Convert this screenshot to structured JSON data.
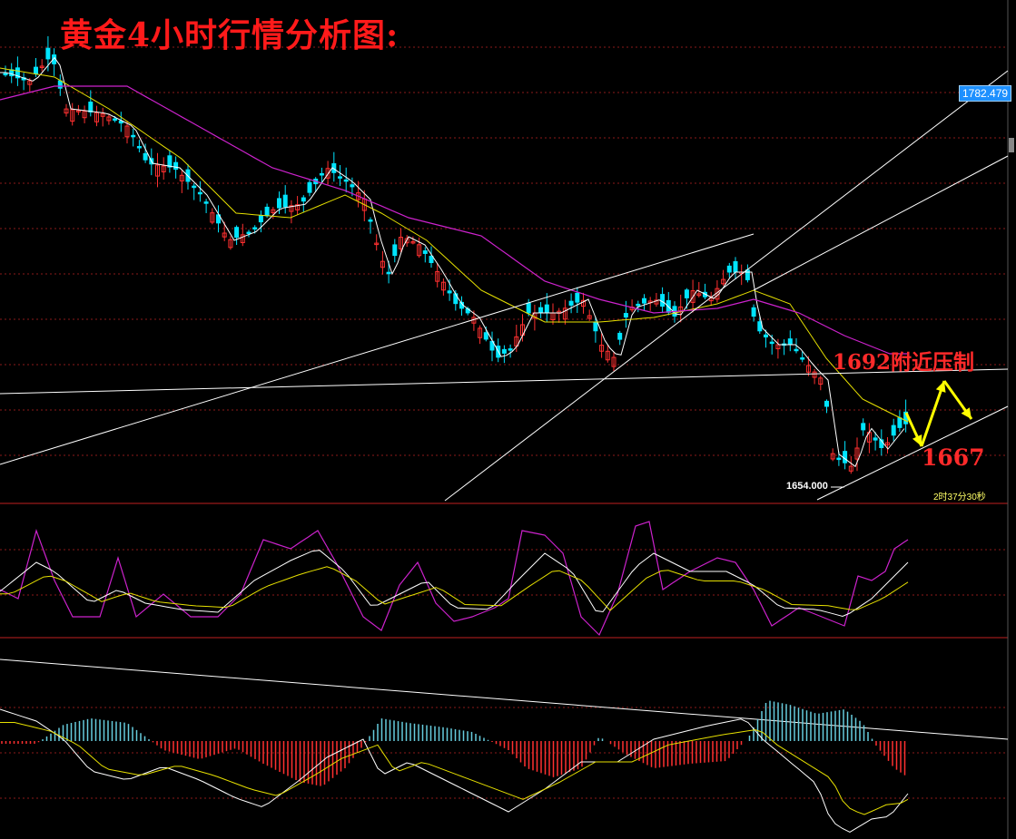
{
  "title": "黄金4小时行情分析图:",
  "annotations": {
    "resistance": "1692附近压制",
    "support": "1667",
    "price_tag": "1782.479",
    "low_tag": "1654.000",
    "countdown": "2时37分30秒"
  },
  "colors": {
    "background": "#000000",
    "bull": "#ff3030",
    "bear": "#00e5ff",
    "ma_fast": "#ffffff",
    "ma_mid": "#e6e000",
    "ma_slow": "#cc22cc",
    "grid": "#8b1a1a",
    "annotation": "#ff2a2a",
    "arrow": "#ffff00"
  },
  "chart_data": {
    "type": "candlestick",
    "main_panel": {
      "ylim": [
        1654,
        1782.479
      ],
      "last_price": 1782.479,
      "lowest_marked": 1654.0,
      "resistance": 1692,
      "support": 1667
    },
    "candles_close_profile": [
      0.84,
      0.86,
      0.87,
      0.88,
      0.9,
      0.92,
      0.93,
      0.91,
      0.85,
      0.8,
      0.79,
      0.8,
      0.78,
      0.76,
      0.77,
      0.74,
      0.72,
      0.68,
      0.66,
      0.67,
      0.65,
      0.62,
      0.6,
      0.58,
      0.55,
      0.5,
      0.48,
      0.5,
      0.53,
      0.55,
      0.57,
      0.6,
      0.62,
      0.6,
      0.58,
      0.55,
      0.5,
      0.47,
      0.45,
      0.42,
      0.38,
      0.36,
      0.35,
      0.33,
      0.3,
      0.28,
      0.29,
      0.3,
      0.32,
      0.31,
      0.3,
      0.28,
      0.27,
      0.26,
      0.27,
      0.29,
      0.31,
      0.33,
      0.35,
      0.36,
      0.34,
      0.32,
      0.3,
      0.28,
      0.22,
      0.18,
      0.12,
      0.08,
      0.04,
      0.03,
      0.05,
      0.09,
      0.12,
      0.14,
      0.16,
      0.15,
      0.17,
      0.19,
      0.18,
      0.2
    ]
  }
}
